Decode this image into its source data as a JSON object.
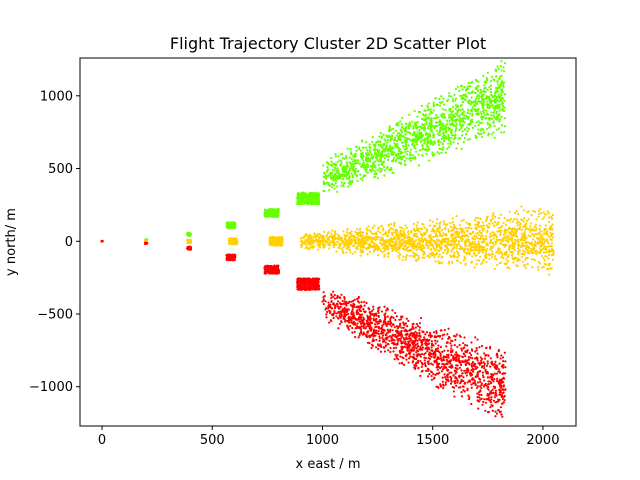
{
  "chart_data": {
    "type": "scatter",
    "title": "Flight Trajectory Cluster 2D Scatter Plot",
    "xlabel": "x east / m",
    "ylabel": "y north/ m",
    "xlim": [
      -100,
      2150
    ],
    "ylim": [
      -1270,
      1260
    ],
    "xticks": [
      0,
      500,
      1000,
      1500,
      2000
    ],
    "yticks": [
      -1000,
      -500,
      0,
      500,
      1000
    ],
    "grid": false,
    "series": [
      {
        "color": "#66ff00",
        "clusters": [
          {
            "cx": 0,
            "cy": 0,
            "w": 6,
            "h": 6,
            "n": 6
          },
          {
            "cx": 200,
            "cy": 10,
            "w": 10,
            "h": 12,
            "n": 10
          },
          {
            "cx": 395,
            "cy": 48,
            "w": 18,
            "h": 22,
            "n": 40
          },
          {
            "cx": 585,
            "cy": 110,
            "w": 40,
            "h": 40,
            "n": 120
          },
          {
            "cx": 770,
            "cy": 195,
            "w": 65,
            "h": 55,
            "n": 220
          },
          {
            "cx": 935,
            "cy": 295,
            "w": 100,
            "h": 80,
            "n": 350
          }
        ],
        "fan": {
          "x0": 1000,
          "x1": 1830,
          "a0": 420,
          "a1": 1000,
          "w0": 260,
          "w1": 560,
          "n": 1500
        }
      },
      {
        "color": "#ffd000",
        "clusters": [
          {
            "cx": 0,
            "cy": 0,
            "w": 6,
            "h": 6,
            "n": 6
          },
          {
            "cx": 200,
            "cy": 0,
            "w": 10,
            "h": 10,
            "n": 10
          },
          {
            "cx": 395,
            "cy": 0,
            "w": 18,
            "h": 22,
            "n": 40
          },
          {
            "cx": 595,
            "cy": 0,
            "w": 40,
            "h": 40,
            "n": 120
          },
          {
            "cx": 790,
            "cy": 0,
            "w": 60,
            "h": 60,
            "n": 220
          }
        ],
        "fan": {
          "x0": 900,
          "x1": 2050,
          "a0": 0,
          "a1": 10,
          "w0": 110,
          "w1": 520,
          "n": 1900
        }
      },
      {
        "color": "#ff0000",
        "clusters": [
          {
            "cx": 0,
            "cy": 0,
            "w": 6,
            "h": 6,
            "n": 6
          },
          {
            "cx": 200,
            "cy": -15,
            "w": 10,
            "h": 10,
            "n": 10
          },
          {
            "cx": 395,
            "cy": -48,
            "w": 18,
            "h": 22,
            "n": 40
          },
          {
            "cx": 585,
            "cy": -110,
            "w": 40,
            "h": 40,
            "n": 120
          },
          {
            "cx": 770,
            "cy": -195,
            "w": 65,
            "h": 55,
            "n": 220
          },
          {
            "cx": 935,
            "cy": -295,
            "w": 100,
            "h": 80,
            "n": 350
          }
        ],
        "fan": {
          "x0": 1000,
          "x1": 1830,
          "a0": -420,
          "a1": -1000,
          "w0": 260,
          "w1": 560,
          "n": 1500
        }
      }
    ]
  }
}
